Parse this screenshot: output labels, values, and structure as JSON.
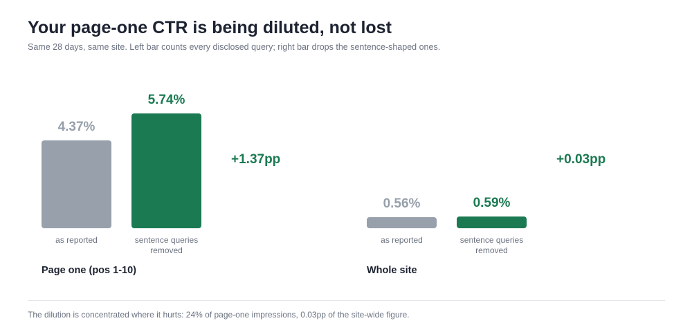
{
  "title": "Your page-one CTR is being diluted, not lost",
  "subtitle": "Same 28 days, same site. Left bar counts every disclosed query; right bar drops the sentence-shaped ones.",
  "footnote": "The dilution is concentrated where it hurts: 24% of page-one impressions, 0.03pp of the site-wide figure.",
  "colors": {
    "reported": "#97a0ab",
    "removed": "#1b7a52"
  },
  "chart_data": {
    "type": "bar",
    "categories": [
      "as reported",
      "sentence queries removed"
    ],
    "value_unit": "%",
    "groups": [
      {
        "name": "Page one (pos 1-10)",
        "delta_label": "+1.37pp",
        "bars": [
          {
            "category": "as reported",
            "value": 4.37,
            "label": "4.37%"
          },
          {
            "category": "sentence queries removed",
            "value": 5.74,
            "label": "5.74%"
          }
        ]
      },
      {
        "name": "Whole site",
        "delta_label": "+0.03pp",
        "bars": [
          {
            "category": "as reported",
            "value": 0.56,
            "label": "0.56%"
          },
          {
            "category": "sentence queries removed",
            "value": 0.59,
            "label": "0.59%"
          }
        ]
      }
    ]
  }
}
